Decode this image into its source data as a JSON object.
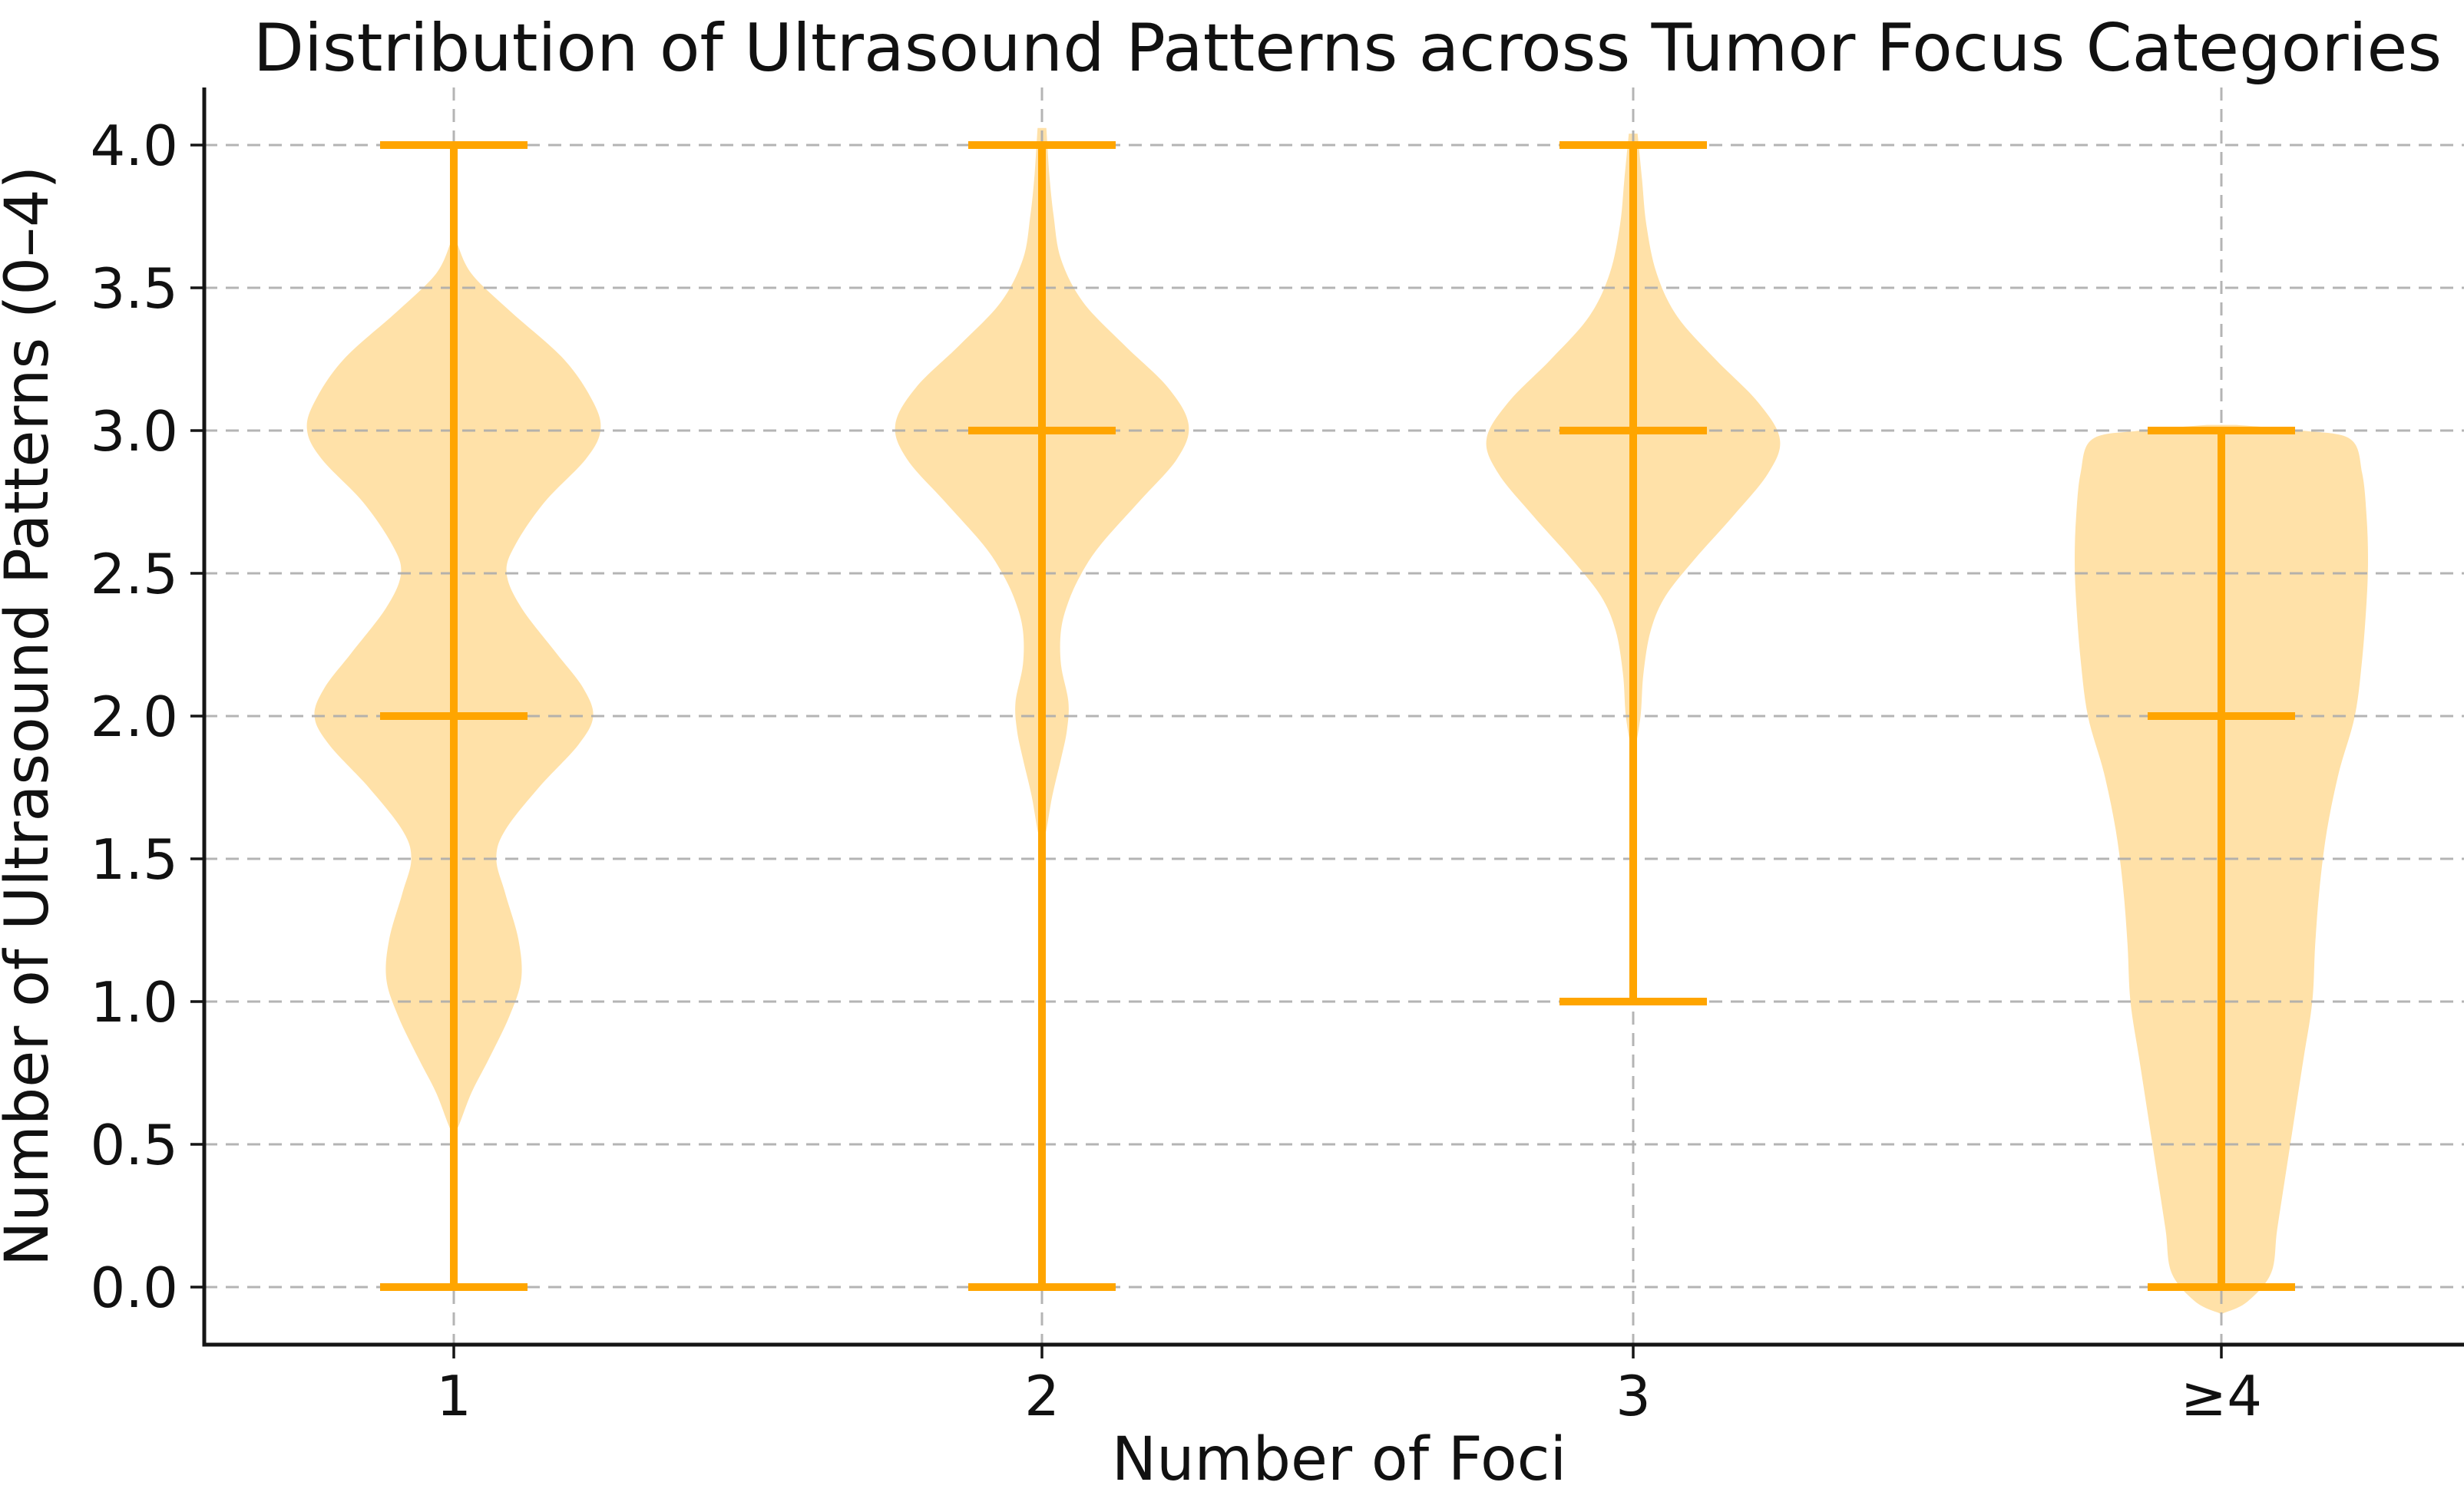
{
  "chart_data": {
    "type": "violin",
    "title": "Distribution of Ultrasound Patterns across Tumor Focus Categories",
    "xlabel": "Number of Foci",
    "ylabel": "Number of Ultrasound Patterns (0–4)",
    "categories": [
      "1",
      "2",
      "3",
      "≥4"
    ],
    "ylim": [
      -0.2,
      4.2
    ],
    "yticks": {
      "values": [
        0.0,
        0.5,
        1.0,
        1.5,
        2.0,
        2.5,
        3.0,
        3.5,
        4.0
      ],
      "labels": [
        "0.0",
        "0.5",
        "1.0",
        "1.5",
        "2.0",
        "2.5",
        "3.0",
        "3.5",
        "4.0"
      ]
    },
    "grid": {
      "horizontal": true,
      "vertical": true,
      "style": "dashed",
      "legend": "none"
    },
    "colors": {
      "violin_fill": "#FFE1A8",
      "stat_lines": "#FFA500",
      "grid": "#ACACAC",
      "spine": "#151515",
      "text": "#111111"
    },
    "series": [
      {
        "category": "1",
        "whisker_min": 0.0,
        "whisker_max": 4.0,
        "median": 2.0,
        "density_peaks": [
          3.0,
          2.0,
          1.0
        ],
        "profile": [
          [
            3.66,
            0.02
          ],
          [
            3.55,
            0.12
          ],
          [
            3.42,
            0.38
          ],
          [
            3.25,
            0.75
          ],
          [
            3.1,
            0.95
          ],
          [
            3.0,
            1.0
          ],
          [
            2.9,
            0.9
          ],
          [
            2.75,
            0.62
          ],
          [
            2.6,
            0.42
          ],
          [
            2.5,
            0.36
          ],
          [
            2.38,
            0.46
          ],
          [
            2.22,
            0.7
          ],
          [
            2.1,
            0.88
          ],
          [
            2.0,
            0.95
          ],
          [
            1.9,
            0.85
          ],
          [
            1.75,
            0.58
          ],
          [
            1.6,
            0.35
          ],
          [
            1.5,
            0.29
          ],
          [
            1.38,
            0.35
          ],
          [
            1.22,
            0.44
          ],
          [
            1.08,
            0.46
          ],
          [
            0.95,
            0.38
          ],
          [
            0.8,
            0.24
          ],
          [
            0.68,
            0.12
          ],
          [
            0.55,
            0.02
          ]
        ]
      },
      {
        "category": "2",
        "whisker_min": 0.0,
        "whisker_max": 4.0,
        "median": 3.0,
        "density_peaks": [
          3.0,
          2.0
        ],
        "profile": [
          [
            4.06,
            0.03
          ],
          [
            3.9,
            0.05
          ],
          [
            3.75,
            0.08
          ],
          [
            3.6,
            0.13
          ],
          [
            3.45,
            0.28
          ],
          [
            3.3,
            0.56
          ],
          [
            3.15,
            0.86
          ],
          [
            3.02,
            1.0
          ],
          [
            2.9,
            0.92
          ],
          [
            2.75,
            0.66
          ],
          [
            2.6,
            0.4
          ],
          [
            2.5,
            0.27
          ],
          [
            2.4,
            0.18
          ],
          [
            2.3,
            0.13
          ],
          [
            2.18,
            0.13
          ],
          [
            2.05,
            0.18
          ],
          [
            1.95,
            0.17
          ],
          [
            1.85,
            0.13
          ],
          [
            1.72,
            0.07
          ],
          [
            1.58,
            0.02
          ]
        ]
      },
      {
        "category": "3",
        "whisker_min": 1.0,
        "whisker_max": 4.0,
        "median": 3.0,
        "density_peaks": [
          3.0
        ],
        "profile": [
          [
            4.04,
            0.03
          ],
          [
            3.88,
            0.06
          ],
          [
            3.72,
            0.09
          ],
          [
            3.55,
            0.16
          ],
          [
            3.4,
            0.3
          ],
          [
            3.25,
            0.56
          ],
          [
            3.1,
            0.85
          ],
          [
            2.97,
            1.0
          ],
          [
            2.85,
            0.92
          ],
          [
            2.7,
            0.68
          ],
          [
            2.55,
            0.42
          ],
          [
            2.42,
            0.22
          ],
          [
            2.3,
            0.12
          ],
          [
            2.15,
            0.07
          ],
          [
            2.0,
            0.05
          ],
          [
            1.88,
            0.01
          ]
        ]
      },
      {
        "category": "≥4",
        "whisker_min": 0.0,
        "whisker_max": 3.0,
        "median": 2.0,
        "density_peaks": [
          2.5
        ],
        "profile": [
          [
            3.02,
            0.1
          ],
          [
            3.0,
            0.55
          ],
          [
            2.97,
            0.88
          ],
          [
            2.85,
            0.96
          ],
          [
            2.7,
            0.99
          ],
          [
            2.55,
            1.0
          ],
          [
            2.4,
            0.99
          ],
          [
            2.2,
            0.96
          ],
          [
            2.0,
            0.91
          ],
          [
            1.8,
            0.8
          ],
          [
            1.6,
            0.72
          ],
          [
            1.4,
            0.67
          ],
          [
            1.2,
            0.64
          ],
          [
            1.0,
            0.62
          ],
          [
            0.8,
            0.56
          ],
          [
            0.6,
            0.5
          ],
          [
            0.4,
            0.44
          ],
          [
            0.2,
            0.38
          ],
          [
            0.05,
            0.34
          ],
          [
            -0.05,
            0.18
          ],
          [
            -0.09,
            0.02
          ]
        ]
      }
    ]
  }
}
